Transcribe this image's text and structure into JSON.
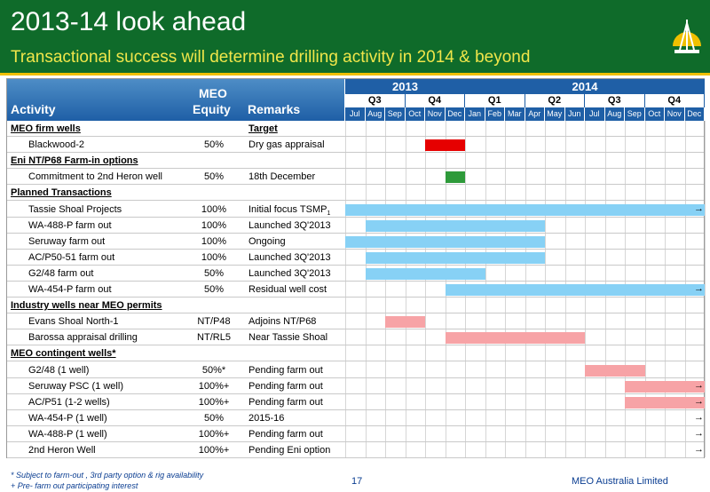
{
  "header": {
    "title": "2013-14 look ahead",
    "subtitle": "Transactional success will determine drilling activity in 2014 & beyond"
  },
  "columns": {
    "activity": "Activity",
    "equity_line1": "MEO",
    "equity_line2": "Equity",
    "remarks": "Remarks"
  },
  "timeline": {
    "years": [
      "2013",
      "2014"
    ],
    "quarters": [
      "Q3",
      "Q4",
      "Q1",
      "Q2",
      "Q3",
      "Q4"
    ],
    "months": [
      "Jul",
      "Aug",
      "Sep",
      "Oct",
      "Nov",
      "Dec",
      "Jan",
      "Feb",
      "Mar",
      "Apr",
      "May",
      "Jun",
      "Jul",
      "Aug",
      "Sep",
      "Oct",
      "Nov",
      "Dec"
    ]
  },
  "colors": {
    "blue": "#87d1f5",
    "red": "#e60000",
    "green": "#2e9a3a",
    "pink": "#f7a3a6",
    "header_green": "#0f6b2a",
    "header_blue": "#1f5fa6"
  },
  "rows": [
    {
      "type": "section",
      "activity": "MEO firm wells",
      "equity": "",
      "remarks": "Target",
      "remarks_section": true
    },
    {
      "type": "item",
      "activity": "Blackwood-2",
      "equity": "50%",
      "remarks": "Dry gas appraisal"
    },
    {
      "type": "section",
      "activity": "Eni NT/P68 Farm-in options",
      "equity": "",
      "remarks": ""
    },
    {
      "type": "item",
      "activity": "Commitment to 2nd Heron well",
      "equity": "50%",
      "remarks": "18th December"
    },
    {
      "type": "section",
      "activity": "Planned Transactions",
      "equity": "",
      "remarks": ""
    },
    {
      "type": "item",
      "activity": "Tassie Shoal Projects",
      "equity": "100%",
      "remarks": "Initial focus TSMP",
      "remarks_sub": "1"
    },
    {
      "type": "item",
      "activity": "WA-488-P farm out",
      "equity": "100%",
      "remarks": "Launched 3Q'2013"
    },
    {
      "type": "item",
      "activity": "Seruway farm out",
      "equity": "100%",
      "remarks": "Ongoing"
    },
    {
      "type": "item",
      "activity": "AC/P50-51 farm out",
      "equity": "100%",
      "remarks": "Launched 3Q'2013"
    },
    {
      "type": "item",
      "activity": "G2/48 farm out",
      "equity": "50%",
      "remarks": "Launched 3Q'2013"
    },
    {
      "type": "item",
      "activity": "WA-454-P farm out",
      "equity": "50%",
      "remarks": "Residual well cost"
    },
    {
      "type": "section",
      "activity": "Industry wells near MEO permits",
      "equity": "",
      "remarks": ""
    },
    {
      "type": "item",
      "activity": "Evans Shoal North-1",
      "equity": "NT/P48",
      "remarks": "Adjoins NT/P68"
    },
    {
      "type": "item",
      "activity": "Barossa appraisal drilling",
      "equity": "NT/RL5",
      "remarks": "Near Tassie Shoal"
    },
    {
      "type": "section",
      "activity": "MEO contingent wells*",
      "equity": "",
      "remarks": ""
    },
    {
      "type": "item",
      "activity": "G2/48 (1 well)",
      "equity": "50%*",
      "remarks": "Pending farm out"
    },
    {
      "type": "item",
      "activity": "Seruway PSC (1 well)",
      "equity": "100%+",
      "remarks": "Pending farm out"
    },
    {
      "type": "item",
      "activity": "AC/P51 (1-2 wells)",
      "equity": "100%+",
      "remarks": "Pending farm out"
    },
    {
      "type": "item",
      "activity": "WA-454-P (1 well)",
      "equity": "50%",
      "remarks": "2015-16"
    },
    {
      "type": "item",
      "activity": "WA-488-P (1 well)",
      "equity": "100%+",
      "remarks": "Pending farm out"
    },
    {
      "type": "item",
      "activity": "2nd Heron Well",
      "equity": "100%+",
      "remarks": "Pending Eni option"
    }
  ],
  "chart_data": {
    "type": "gantt",
    "x_axis": "months Jul 2013 – Dec 2014",
    "bars": [
      {
        "row": 1,
        "start_month": 4.0,
        "end_month": 6.0,
        "color": "red"
      },
      {
        "row": 3,
        "start_month": 5.0,
        "end_month": 6.0,
        "color": "green"
      },
      {
        "row": 5,
        "start_month": 0.0,
        "end_month": 18.0,
        "color": "blue",
        "arrow": true
      },
      {
        "row": 6,
        "start_month": 1.0,
        "end_month": 10.0,
        "color": "blue"
      },
      {
        "row": 7,
        "start_month": 0.0,
        "end_month": 10.0,
        "color": "blue"
      },
      {
        "row": 8,
        "start_month": 1.0,
        "end_month": 10.0,
        "color": "blue"
      },
      {
        "row": 9,
        "start_month": 1.0,
        "end_month": 7.0,
        "color": "blue"
      },
      {
        "row": 10,
        "start_month": 5.0,
        "end_month": 18.0,
        "color": "blue",
        "arrow": true
      },
      {
        "row": 12,
        "start_month": 2.0,
        "end_month": 4.0,
        "color": "pink"
      },
      {
        "row": 13,
        "start_month": 5.0,
        "end_month": 12.0,
        "color": "pink"
      },
      {
        "row": 15,
        "start_month": 12.0,
        "end_month": 15.0,
        "color": "pink"
      },
      {
        "row": 16,
        "start_month": 14.0,
        "end_month": 18.0,
        "color": "pink",
        "arrow": true
      },
      {
        "row": 17,
        "start_month": 14.0,
        "end_month": 18.0,
        "color": "pink",
        "arrow": true
      },
      {
        "row": 18,
        "start_month": 18.0,
        "end_month": 18.0,
        "color": "none",
        "arrow": true
      },
      {
        "row": 19,
        "start_month": 18.0,
        "end_month": 18.0,
        "color": "none",
        "arrow": true
      },
      {
        "row": 20,
        "start_month": 18.0,
        "end_month": 18.0,
        "color": "none",
        "arrow": true
      }
    ]
  },
  "footer": {
    "note1": "* Subject to farm-out , 3rd party option & rig availability",
    "note2": "+ Pre- farm out participating interest",
    "page": "17",
    "brand": "MEO Australia Limited"
  }
}
